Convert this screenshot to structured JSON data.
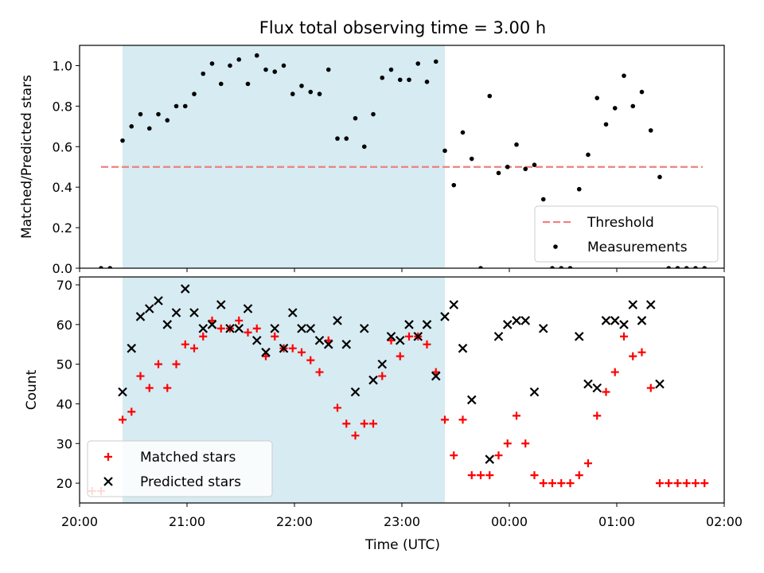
{
  "figure": {
    "title": "Flux total observing time = 3.00 h",
    "xlabel": "Time (UTC)"
  },
  "chart_data": [
    {
      "type": "scatter",
      "ylabel": "Matched/Predicted stars",
      "xlim": [
        "20:00",
        "02:00"
      ],
      "ylim": [
        0,
        1.1
      ],
      "x_ticks": [
        "20:00",
        "21:00",
        "22:00",
        "23:00",
        "00:00",
        "01:00",
        "02:00"
      ],
      "y_ticks": [
        "0.0",
        "0.2",
        "0.4",
        "0.6",
        "0.8",
        "1.0"
      ],
      "grid": false,
      "legend_position": "lower-right",
      "observing_window": {
        "start": "20:24",
        "end": "23:24",
        "color": "#add8e6"
      },
      "threshold": {
        "name": "Threshold",
        "value": 0.5,
        "x_start": "20:12",
        "x_end": "01:48",
        "color": "#f08080"
      },
      "series": [
        {
          "name": "Measurements",
          "marker": "dot",
          "color": "#000000",
          "points": [
            [
              "20:12",
              0.0
            ],
            [
              "20:17",
              0.0
            ],
            [
              "20:24",
              0.63
            ],
            [
              "20:29",
              0.7
            ],
            [
              "20:34",
              0.76
            ],
            [
              "20:39",
              0.69
            ],
            [
              "20:44",
              0.76
            ],
            [
              "20:49",
              0.73
            ],
            [
              "20:54",
              0.8
            ],
            [
              "20:59",
              0.8
            ],
            [
              "21:04",
              0.86
            ],
            [
              "21:09",
              0.96
            ],
            [
              "21:14",
              1.01
            ],
            [
              "21:19",
              0.91
            ],
            [
              "21:24",
              1.0
            ],
            [
              "21:29",
              1.03
            ],
            [
              "21:34",
              0.91
            ],
            [
              "21:39",
              1.05
            ],
            [
              "21:44",
              0.98
            ],
            [
              "21:49",
              0.97
            ],
            [
              "21:54",
              1.0
            ],
            [
              "21:59",
              0.86
            ],
            [
              "22:04",
              0.9
            ],
            [
              "22:09",
              0.87
            ],
            [
              "22:14",
              0.86
            ],
            [
              "22:19",
              0.98
            ],
            [
              "22:24",
              0.64
            ],
            [
              "22:29",
              0.64
            ],
            [
              "22:34",
              0.74
            ],
            [
              "22:39",
              0.6
            ],
            [
              "22:44",
              0.76
            ],
            [
              "22:49",
              0.94
            ],
            [
              "22:54",
              0.98
            ],
            [
              "22:59",
              0.93
            ],
            [
              "23:04",
              0.93
            ],
            [
              "23:09",
              1.01
            ],
            [
              "23:14",
              0.92
            ],
            [
              "23:19",
              1.02
            ],
            [
              "23:24",
              0.58
            ],
            [
              "23:29",
              0.41
            ],
            [
              "23:34",
              0.67
            ],
            [
              "23:39",
              0.54
            ],
            [
              "23:44",
              0.0
            ],
            [
              "23:49",
              0.85
            ],
            [
              "23:54",
              0.47
            ],
            [
              "23:59",
              0.5
            ],
            [
              "00:04",
              0.61
            ],
            [
              "00:09",
              0.49
            ],
            [
              "00:14",
              0.51
            ],
            [
              "00:19",
              0.34
            ],
            [
              "00:24",
              0.0
            ],
            [
              "00:29",
              0.0
            ],
            [
              "00:34",
              0.0
            ],
            [
              "00:39",
              0.39
            ],
            [
              "00:44",
              0.56
            ],
            [
              "00:49",
              0.84
            ],
            [
              "00:54",
              0.71
            ],
            [
              "00:59",
              0.79
            ],
            [
              "01:04",
              0.95
            ],
            [
              "01:09",
              0.8
            ],
            [
              "01:14",
              0.87
            ],
            [
              "01:19",
              0.68
            ],
            [
              "01:24",
              0.45
            ],
            [
              "01:29",
              0.0
            ],
            [
              "01:34",
              0.0
            ],
            [
              "01:39",
              0.0
            ],
            [
              "01:44",
              0.0
            ],
            [
              "01:49",
              0.0
            ]
          ]
        }
      ]
    },
    {
      "type": "scatter",
      "ylabel": "Count",
      "xlim": [
        "20:00",
        "02:00"
      ],
      "ylim": [
        15,
        72
      ],
      "x_ticks": [
        "20:00",
        "21:00",
        "22:00",
        "23:00",
        "00:00",
        "01:00",
        "02:00"
      ],
      "y_ticks": [
        "20",
        "30",
        "40",
        "50",
        "60",
        "70"
      ],
      "grid": false,
      "legend_position": "lower-left",
      "observing_window": {
        "start": "20:24",
        "end": "23:24",
        "color": "#add8e6"
      },
      "series": [
        {
          "name": "Matched stars",
          "marker": "plus",
          "color": "#ff0000",
          "points": [
            [
              "20:07",
              18
            ],
            [
              "20:12",
              18
            ],
            [
              "20:24",
              36
            ],
            [
              "20:29",
              38
            ],
            [
              "20:34",
              47
            ],
            [
              "20:39",
              44
            ],
            [
              "20:44",
              50
            ],
            [
              "20:49",
              44
            ],
            [
              "20:54",
              50
            ],
            [
              "20:59",
              55
            ],
            [
              "21:04",
              54
            ],
            [
              "21:09",
              57
            ],
            [
              "21:14",
              61
            ],
            [
              "21:19",
              59
            ],
            [
              "21:24",
              59
            ],
            [
              "21:29",
              61
            ],
            [
              "21:34",
              58
            ],
            [
              "21:39",
              59
            ],
            [
              "21:44",
              52
            ],
            [
              "21:49",
              57
            ],
            [
              "21:54",
              54
            ],
            [
              "21:59",
              54
            ],
            [
              "22:04",
              53
            ],
            [
              "22:09",
              51
            ],
            [
              "22:14",
              48
            ],
            [
              "22:19",
              56
            ],
            [
              "22:24",
              39
            ],
            [
              "22:29",
              35
            ],
            [
              "22:34",
              32
            ],
            [
              "22:39",
              35
            ],
            [
              "22:44",
              35
            ],
            [
              "22:49",
              47
            ],
            [
              "22:54",
              56
            ],
            [
              "22:59",
              52
            ],
            [
              "23:04",
              57
            ],
            [
              "23:09",
              57
            ],
            [
              "23:14",
              55
            ],
            [
              "23:19",
              48
            ],
            [
              "23:24",
              36
            ],
            [
              "23:29",
              27
            ],
            [
              "23:34",
              36
            ],
            [
              "23:39",
              22
            ],
            [
              "23:44",
              22
            ],
            [
              "23:49",
              22
            ],
            [
              "23:54",
              27
            ],
            [
              "23:59",
              30
            ],
            [
              "00:04",
              37
            ],
            [
              "00:09",
              30
            ],
            [
              "00:14",
              22
            ],
            [
              "00:19",
              20
            ],
            [
              "00:24",
              20
            ],
            [
              "00:29",
              20
            ],
            [
              "00:34",
              20
            ],
            [
              "00:39",
              22
            ],
            [
              "00:44",
              25
            ],
            [
              "00:49",
              37
            ],
            [
              "00:54",
              43
            ],
            [
              "00:59",
              48
            ],
            [
              "01:04",
              57
            ],
            [
              "01:09",
              52
            ],
            [
              "01:14",
              53
            ],
            [
              "01:19",
              44
            ],
            [
              "01:24",
              20
            ],
            [
              "01:29",
              20
            ],
            [
              "01:34",
              20
            ],
            [
              "01:39",
              20
            ],
            [
              "01:44",
              20
            ],
            [
              "01:49",
              20
            ]
          ]
        },
        {
          "name": "Predicted stars",
          "marker": "x",
          "color": "#000000",
          "points": [
            [
              "20:24",
              43
            ],
            [
              "20:29",
              54
            ],
            [
              "20:34",
              62
            ],
            [
              "20:39",
              64
            ],
            [
              "20:44",
              66
            ],
            [
              "20:49",
              60
            ],
            [
              "20:54",
              63
            ],
            [
              "20:59",
              69
            ],
            [
              "21:04",
              63
            ],
            [
              "21:09",
              59
            ],
            [
              "21:14",
              60
            ],
            [
              "21:19",
              65
            ],
            [
              "21:24",
              59
            ],
            [
              "21:29",
              59
            ],
            [
              "21:34",
              64
            ],
            [
              "21:39",
              56
            ],
            [
              "21:44",
              53
            ],
            [
              "21:49",
              59
            ],
            [
              "21:54",
              54
            ],
            [
              "21:59",
              63
            ],
            [
              "22:04",
              59
            ],
            [
              "22:09",
              59
            ],
            [
              "22:14",
              56
            ],
            [
              "22:19",
              55
            ],
            [
              "22:24",
              61
            ],
            [
              "22:29",
              55
            ],
            [
              "22:34",
              43
            ],
            [
              "22:39",
              59
            ],
            [
              "22:44",
              46
            ],
            [
              "22:49",
              50
            ],
            [
              "22:54",
              57
            ],
            [
              "22:59",
              56
            ],
            [
              "23:04",
              60
            ],
            [
              "23:09",
              57
            ],
            [
              "23:14",
              60
            ],
            [
              "23:19",
              47
            ],
            [
              "23:24",
              62
            ],
            [
              "23:29",
              65
            ],
            [
              "23:34",
              54
            ],
            [
              "23:39",
              41
            ],
            [
              "23:49",
              26
            ],
            [
              "23:54",
              57
            ],
            [
              "23:59",
              60
            ],
            [
              "00:04",
              61
            ],
            [
              "00:09",
              61
            ],
            [
              "00:14",
              43
            ],
            [
              "00:19",
              59
            ],
            [
              "00:39",
              57
            ],
            [
              "00:44",
              45
            ],
            [
              "00:49",
              44
            ],
            [
              "00:54",
              61
            ],
            [
              "00:59",
              61
            ],
            [
              "01:04",
              60
            ],
            [
              "01:09",
              65
            ],
            [
              "01:14",
              61
            ],
            [
              "01:19",
              65
            ],
            [
              "01:24",
              45
            ]
          ]
        }
      ]
    }
  ]
}
